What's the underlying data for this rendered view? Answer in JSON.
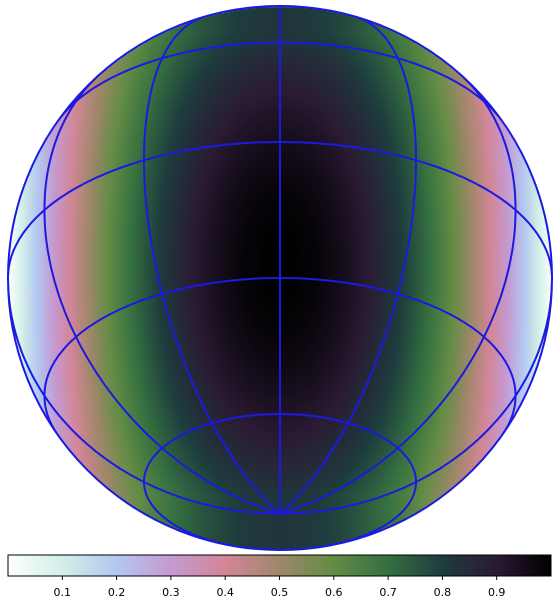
{
  "chart_data": {
    "type": "heatmap",
    "title": "",
    "projection": "orthographic sphere",
    "colormap": {
      "name": "cubehelix_r",
      "stops": [
        "#ffffff",
        "#d2efe8",
        "#b4c7f0",
        "#c59ad2",
        "#d38697",
        "#a0876a",
        "#628c45",
        "#357040",
        "#1e3d3e",
        "#2a1a34",
        "#000000"
      ]
    },
    "field": {
      "description_of_values": "value is 1 at the sphere center and falls to 0 toward left and right limbs",
      "min": 0,
      "max": 1
    },
    "colorbar": {
      "range": [
        0,
        1
      ],
      "ticks": [
        "0.1",
        "0.2",
        "0.3",
        "0.4",
        "0.5",
        "0.6",
        "0.7",
        "0.8",
        "0.9"
      ],
      "tick_values": [
        0.1,
        0.2,
        0.3,
        0.4,
        0.5,
        0.6,
        0.7,
        0.8,
        0.9
      ]
    },
    "graticule": {
      "color": "#1a1ae0",
      "meridians_deg": [
        -90,
        -60,
        -30,
        0,
        30,
        60,
        90
      ],
      "parallels_deg": [
        -60,
        -30,
        0,
        30,
        60
      ]
    },
    "grid": true
  }
}
